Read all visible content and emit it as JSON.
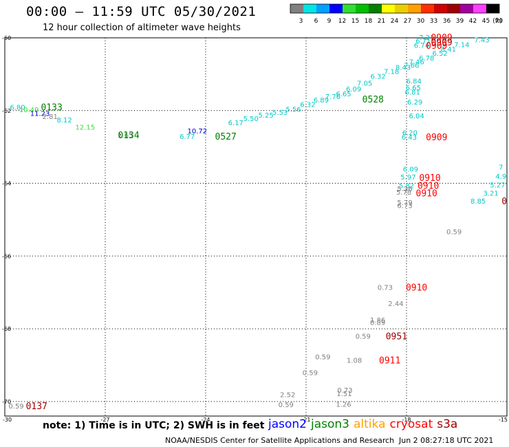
{
  "header": {
    "title": "00:00 – 11:59 UTC 05/30/2021",
    "subtitle": "12 hour collection of altimeter wave heights"
  },
  "colorbar": {
    "unit_label": "(ft)",
    "bins": [
      {
        "label": "3",
        "color": "#808080"
      },
      {
        "label": "6",
        "color": "#00e5e5"
      },
      {
        "label": "9",
        "color": "#00a0ff"
      },
      {
        "label": "12",
        "color": "#0000ff"
      },
      {
        "label": "15",
        "color": "#30e030"
      },
      {
        "label": "18",
        "color": "#00c000"
      },
      {
        "label": "21",
        "color": "#008000"
      },
      {
        "label": "24",
        "color": "#ffff00"
      },
      {
        "label": "27",
        "color": "#e8d000"
      },
      {
        "label": "30",
        "color": "#ffa000"
      },
      {
        "label": "33",
        "color": "#ff3000"
      },
      {
        "label": "36",
        "color": "#d00000"
      },
      {
        "label": "39",
        "color": "#a00000"
      },
      {
        "label": "42",
        "color": "#a000a0"
      },
      {
        "label": "45",
        "color": "#ff40ff"
      },
      {
        "label": "70",
        "color": "#000000"
      }
    ]
  },
  "axes": {
    "x_ticks": [
      "-30",
      "-27",
      "-24",
      "-21",
      "-18",
      "-15"
    ],
    "y_ticks": [
      "-60",
      "-62",
      "-64",
      "-66",
      "-68",
      "-70"
    ],
    "xlim": [
      -30,
      -15
    ],
    "ylim": [
      -70.4,
      -60
    ]
  },
  "footer": {
    "note": "note: 1) Time is in UTC; 2) SWH is in feet",
    "credit": "NOAA/NESDIS Center for Satellite Applications and Research",
    "timestamp": "Jun  2 08:27:18 UTC 2021",
    "satellites": [
      {
        "name": "jason2",
        "color": "#0000ff"
      },
      {
        "name": "jason3",
        "color": "#008000"
      },
      {
        "name": "altika",
        "color": "#ffa000"
      },
      {
        "name": "cryosat",
        "color": "#ff0000"
      },
      {
        "name": "s3a",
        "color": "#a00000"
      }
    ]
  },
  "chart_data": {
    "type": "scatter",
    "title": "00:00 – 11:59 UTC 05/30/2021",
    "subtitle": "12 hour collection of altimeter wave heights",
    "grid": true,
    "xlim": [
      -30,
      -15
    ],
    "ylim": [
      -70.4,
      -60
    ],
    "wave_heights": [
      {
        "x": -29.62,
        "y": -61.9,
        "label": "6.80",
        "color": "#00c8c8"
      },
      {
        "x": -29.28,
        "y": -61.97,
        "label": "10.49",
        "color": "#30e030"
      },
      {
        "x": -28.95,
        "y": -62.07,
        "label": "11.23",
        "color": "#0000d0"
      },
      {
        "x": -28.65,
        "y": -62.16,
        "label": "2.81",
        "color": "#808080"
      },
      {
        "x": -28.22,
        "y": -62.25,
        "label": "8.12",
        "color": "#00c8c8"
      },
      {
        "x": -27.6,
        "y": -62.45,
        "label": "12.15",
        "color": "#30e030"
      },
      {
        "x": -26.4,
        "y": -62.67,
        "label": "1.65",
        "color": "#808080"
      },
      {
        "x": -24.25,
        "y": -62.55,
        "label": "10.72",
        "color": "#0000d0"
      },
      {
        "x": -24.55,
        "y": -62.7,
        "label": "6.77",
        "color": "#00c8c8"
      },
      {
        "x": -23.1,
        "y": -62.33,
        "label": "6.17",
        "color": "#00c8c8"
      },
      {
        "x": -22.65,
        "y": -62.21,
        "label": "5.50",
        "color": "#00c8c8"
      },
      {
        "x": -22.2,
        "y": -62.12,
        "label": "5.25",
        "color": "#00c8c8"
      },
      {
        "x": -21.78,
        "y": -62.04,
        "label": "5.53",
        "color": "#00c8c8"
      },
      {
        "x": -21.38,
        "y": -61.96,
        "label": "5.56",
        "color": "#00c8c8"
      },
      {
        "x": -20.95,
        "y": -61.82,
        "label": "6.32",
        "color": "#00c8c8"
      },
      {
        "x": -20.55,
        "y": -61.7,
        "label": "6.89",
        "color": "#00c8c8"
      },
      {
        "x": -20.2,
        "y": -61.61,
        "label": "7.76",
        "color": "#00c8c8"
      },
      {
        "x": -19.88,
        "y": -61.53,
        "label": "6.65",
        "color": "#00c8c8"
      },
      {
        "x": -19.58,
        "y": -61.4,
        "label": "6.09",
        "color": "#00c8c8"
      },
      {
        "x": -19.25,
        "y": -61.24,
        "label": "7.05",
        "color": "#00c8c8"
      },
      {
        "x": -18.85,
        "y": -61.05,
        "label": "6.32",
        "color": "#00c8c8"
      },
      {
        "x": -18.45,
        "y": -60.92,
        "label": "7.18",
        "color": "#00c8c8"
      },
      {
        "x": -18.1,
        "y": -60.8,
        "label": "8.43",
        "color": "#00c8c8"
      },
      {
        "x": -17.7,
        "y": -60.65,
        "label": "7.46",
        "color": "#00c8c8"
      },
      {
        "x": -17.4,
        "y": -60.55,
        "label": "6.78",
        "color": "#00c8c8"
      },
      {
        "x": -17.55,
        "y": -60.2,
        "label": "6.74",
        "color": "#00c8c8"
      },
      {
        "x": -17.5,
        "y": -60.08,
        "label": "6.71",
        "color": "#00c8c8"
      },
      {
        "x": -17.4,
        "y": -59.98,
        "label": "7.21",
        "color": "#00c8c8"
      },
      {
        "x": -16.35,
        "y": -60.18,
        "label": "7.14",
        "color": "#00c8c8"
      },
      {
        "x": -15.75,
        "y": -60.05,
        "label": "7.43",
        "color": "#00c8c8"
      },
      {
        "x": -16.75,
        "y": -60.3,
        "label": "8.41",
        "color": "#00c8c8"
      },
      {
        "x": -17.0,
        "y": -60.42,
        "label": "6.52",
        "color": "#00c8c8"
      },
      {
        "x": -17.85,
        "y": -60.75,
        "label": "7.66",
        "color": "#00c8c8"
      },
      {
        "x": -17.78,
        "y": -61.18,
        "label": "6.84",
        "color": "#00c8c8"
      },
      {
        "x": -17.8,
        "y": -61.36,
        "label": "6.65",
        "color": "#00c8c8"
      },
      {
        "x": -17.82,
        "y": -61.48,
        "label": "6.81",
        "color": "#00c8c8"
      },
      {
        "x": -17.75,
        "y": -61.76,
        "label": "6.29",
        "color": "#00c8c8"
      },
      {
        "x": -17.7,
        "y": -62.14,
        "label": "6.04",
        "color": "#00c8c8"
      },
      {
        "x": -17.9,
        "y": -62.6,
        "label": "6.20",
        "color": "#00c8c8"
      },
      {
        "x": -17.92,
        "y": -62.72,
        "label": "6.43",
        "color": "#00c8c8"
      },
      {
        "x": -17.88,
        "y": -63.6,
        "label": "6.09",
        "color": "#00c8c8"
      },
      {
        "x": -17.95,
        "y": -63.82,
        "label": "5.97",
        "color": "#00c8c8"
      },
      {
        "x": -18.0,
        "y": -64.06,
        "label": "5.82",
        "color": "#00c8c8"
      },
      {
        "x": -18.05,
        "y": -64.14,
        "label": "5.36",
        "color": "#808080"
      },
      {
        "x": -18.08,
        "y": -64.24,
        "label": "5.78",
        "color": "#808080"
      },
      {
        "x": -18.05,
        "y": -64.52,
        "label": "5.79",
        "color": "#808080"
      },
      {
        "x": -18.05,
        "y": -64.6,
        "label": "6.73",
        "color": "#808080"
      },
      {
        "x": -16.58,
        "y": -65.32,
        "label": "0.59",
        "color": "#808080"
      },
      {
        "x": -15.18,
        "y": -63.55,
        "label": "7",
        "color": "#00c8c8"
      },
      {
        "x": -15.18,
        "y": -63.8,
        "label": "4.9",
        "color": "#00c8c8"
      },
      {
        "x": -15.28,
        "y": -64.04,
        "label": "5.27",
        "color": "#00c8c8"
      },
      {
        "x": -15.48,
        "y": -64.26,
        "label": "3.21",
        "color": "#00c8c8"
      },
      {
        "x": -15.86,
        "y": -64.48,
        "label": "8.85",
        "color": "#00c8c8"
      },
      {
        "x": -18.64,
        "y": -66.85,
        "label": "0.73",
        "color": "#808080"
      },
      {
        "x": -18.32,
        "y": -67.3,
        "label": "2.44",
        "color": "#808080"
      },
      {
        "x": -18.86,
        "y": -67.75,
        "label": "1.86",
        "color": "#808080"
      },
      {
        "x": -18.86,
        "y": -67.82,
        "label": "0.89",
        "color": "#808080"
      },
      {
        "x": -19.3,
        "y": -68.2,
        "label": "0.59",
        "color": "#808080"
      },
      {
        "x": -20.5,
        "y": -68.76,
        "label": "0.59",
        "color": "#808080"
      },
      {
        "x": -19.56,
        "y": -68.86,
        "label": "1.08",
        "color": "#808080"
      },
      {
        "x": -20.88,
        "y": -69.2,
        "label": "0.59",
        "color": "#808080"
      },
      {
        "x": -19.84,
        "y": -69.68,
        "label": "0.73",
        "color": "#808080"
      },
      {
        "x": -19.86,
        "y": -69.78,
        "label": "1.51",
        "color": "#808080"
      },
      {
        "x": -21.55,
        "y": -69.8,
        "label": "2.52",
        "color": "#808080"
      },
      {
        "x": -21.6,
        "y": -70.08,
        "label": "0.59",
        "color": "#808080"
      },
      {
        "x": -19.88,
        "y": -70.07,
        "label": "1.26",
        "color": "#808080"
      },
      {
        "x": -29.66,
        "y": -70.12,
        "label": "0.59",
        "color": "#808080"
      }
    ],
    "pass_times": [
      {
        "x": -28.6,
        "y": -61.9,
        "label": "0133",
        "color": "#008000"
      },
      {
        "x": -26.3,
        "y": -62.67,
        "label": "0134",
        "color": "#008000"
      },
      {
        "x": -23.4,
        "y": -62.7,
        "label": "0527",
        "color": "#008000"
      },
      {
        "x": -19.0,
        "y": -61.68,
        "label": "0528",
        "color": "#008000"
      },
      {
        "x": -16.95,
        "y": -59.98,
        "label": "0909",
        "color": "#ff0000"
      },
      {
        "x": -16.95,
        "y": -60.11,
        "label": "0909",
        "color": "#a00000"
      },
      {
        "x": -17.1,
        "y": -60.21,
        "label": "0909",
        "color": "#ff0000"
      },
      {
        "x": -17.1,
        "y": -62.72,
        "label": "0909",
        "color": "#ff0000"
      },
      {
        "x": -17.3,
        "y": -63.84,
        "label": "0910",
        "color": "#ff0000"
      },
      {
        "x": -17.35,
        "y": -64.06,
        "label": "0910",
        "color": "#ff0000"
      },
      {
        "x": -17.4,
        "y": -64.26,
        "label": "0910",
        "color": "#ff0000"
      },
      {
        "x": -15.08,
        "y": -64.48,
        "label": "0",
        "color": "#a00000"
      },
      {
        "x": -17.7,
        "y": -66.85,
        "label": "0910",
        "color": "#ff0000"
      },
      {
        "x": -18.3,
        "y": -68.2,
        "label": "0951",
        "color": "#a00000"
      },
      {
        "x": -18.5,
        "y": -68.86,
        "label": "0911",
        "color": "#ff0000"
      },
      {
        "x": -29.05,
        "y": -70.12,
        "label": "0137",
        "color": "#a00000"
      }
    ]
  }
}
